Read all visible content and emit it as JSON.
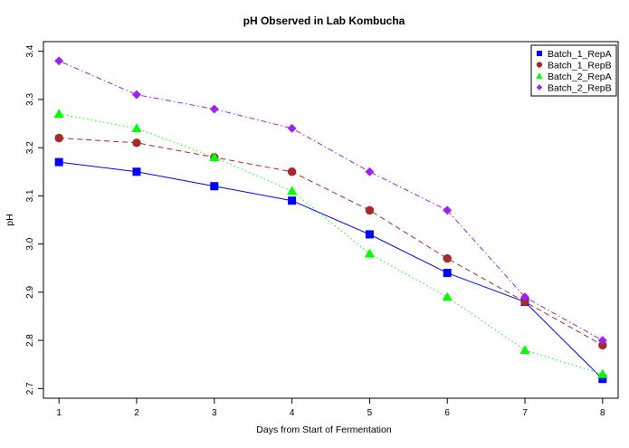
{
  "chart_data": {
    "type": "line",
    "title": "pH Observed in Lab Kombucha",
    "xlabel": "Days from Start of Fermentation",
    "ylabel": "pH",
    "x": [
      1,
      2,
      3,
      4,
      5,
      6,
      7,
      8
    ],
    "xlim": [
      0.8,
      8.2
    ],
    "ylim": [
      2.68,
      3.42
    ],
    "x_ticks": [
      "1",
      "2",
      "3",
      "4",
      "5",
      "6",
      "7",
      "8"
    ],
    "y_ticks": [
      "2.7",
      "2.8",
      "2.9",
      "3.0",
      "3.1",
      "3.2",
      "3.3",
      "3.4"
    ],
    "grid": false,
    "legend_position": "top-right",
    "series": [
      {
        "name": "Batch_1_RepA",
        "values": [
          3.17,
          3.15,
          3.12,
          3.09,
          3.02,
          2.94,
          2.88,
          2.72
        ],
        "color": "#0000ff",
        "marker": "square",
        "line_style": "solid"
      },
      {
        "name": "Batch_1_RepB",
        "values": [
          3.22,
          3.21,
          3.18,
          3.15,
          3.07,
          2.97,
          2.88,
          2.79
        ],
        "color": "#a52a2a",
        "marker": "circle",
        "line_style": "dashed"
      },
      {
        "name": "Batch_2_RepA",
        "values": [
          3.27,
          3.24,
          3.18,
          3.11,
          2.98,
          2.89,
          2.78,
          2.73
        ],
        "color": "#00ff00",
        "marker": "triangle",
        "line_style": "dotted"
      },
      {
        "name": "Batch_2_RepB",
        "values": [
          3.38,
          3.31,
          3.28,
          3.24,
          3.15,
          3.07,
          2.89,
          2.8
        ],
        "color": "#a020f0",
        "marker": "diamond",
        "line_style": "dotdash"
      }
    ]
  }
}
